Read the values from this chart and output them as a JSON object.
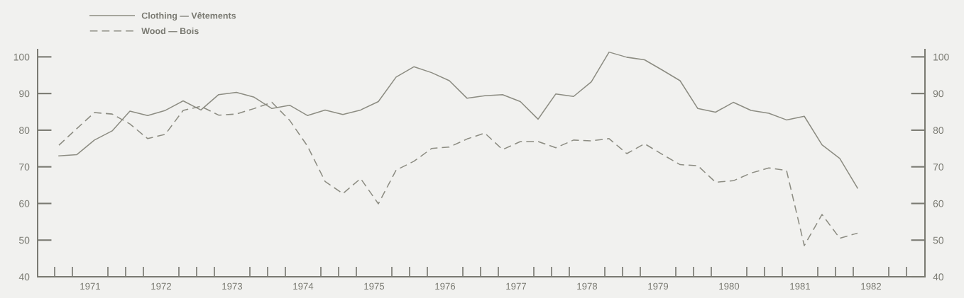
{
  "chart_data": {
    "type": "line",
    "x": [
      1971.06,
      1971.31,
      1971.56,
      1971.81,
      1972.06,
      1972.31,
      1972.56,
      1972.81,
      1973.06,
      1973.31,
      1973.56,
      1973.81,
      1974.06,
      1974.31,
      1974.56,
      1974.81,
      1975.06,
      1975.31,
      1975.56,
      1975.81,
      1976.06,
      1976.31,
      1976.56,
      1976.81,
      1977.06,
      1977.31,
      1977.56,
      1977.81,
      1978.06,
      1978.31,
      1978.56,
      1978.81,
      1979.06,
      1979.31,
      1979.56,
      1979.81,
      1980.06,
      1980.31,
      1980.56,
      1980.81,
      1981.06,
      1981.31,
      1981.56,
      1981.81,
      1982.06,
      1982.31
    ],
    "series": [
      {
        "name": "Clothing — Vêtements",
        "color": "#8c8c82",
        "line_style": "solid",
        "values": [
          73.0,
          73.3,
          77.3,
          79.8,
          85.2,
          84.0,
          85.4,
          88.0,
          85.5,
          89.7,
          90.3,
          89.0,
          85.9,
          86.8,
          84.0,
          85.5,
          84.3,
          85.5,
          87.8,
          94.5,
          97.3,
          95.7,
          93.5,
          88.7,
          89.4,
          89.7,
          87.8,
          83.0,
          89.9,
          89.2,
          93.2,
          101.3,
          99.9,
          99.2,
          96.4,
          93.5,
          85.9,
          84.9,
          87.6,
          85.4,
          84.6,
          82.8,
          83.8,
          76.0,
          72.3,
          64.2
        ]
      },
      {
        "name": "Wood — Bois",
        "color": "#8c8c82",
        "line_style": "dashed",
        "values": [
          75.9,
          80.4,
          84.8,
          84.4,
          81.7,
          77.7,
          78.9,
          85.4,
          86.5,
          84.1,
          84.4,
          85.9,
          87.6,
          82.7,
          75.7,
          66.0,
          62.7,
          66.8,
          59.9,
          69.1,
          71.5,
          75.0,
          75.4,
          77.6,
          79.2,
          74.7,
          76.9,
          76.9,
          75.2,
          77.3,
          77.1,
          77.7,
          73.6,
          76.3,
          73.4,
          70.6,
          70.3,
          65.8,
          66.2,
          68.3,
          69.7,
          69.0,
          48.5,
          57.0,
          50.5,
          51.9
        ]
      }
    ],
    "xlim": [
      1970.76,
      1983.26
    ],
    "xticks": [
      {
        "value": 1971,
        "label": null
      },
      {
        "value": 1971.25,
        "label": null
      },
      {
        "value": 1971.5,
        "label": "1971"
      },
      {
        "value": 1971.75,
        "label": null
      },
      {
        "value": 1972,
        "label": null
      },
      {
        "value": 1972.25,
        "label": null
      },
      {
        "value": 1972.5,
        "label": "1972"
      },
      {
        "value": 1972.75,
        "label": null
      },
      {
        "value": 1973,
        "label": null
      },
      {
        "value": 1973.25,
        "label": null
      },
      {
        "value": 1973.5,
        "label": "1973"
      },
      {
        "value": 1973.75,
        "label": null
      },
      {
        "value": 1974,
        "label": null
      },
      {
        "value": 1974.25,
        "label": null
      },
      {
        "value": 1974.5,
        "label": "1974"
      },
      {
        "value": 1974.75,
        "label": null
      },
      {
        "value": 1975,
        "label": null
      },
      {
        "value": 1975.25,
        "label": null
      },
      {
        "value": 1975.5,
        "label": "1975"
      },
      {
        "value": 1975.75,
        "label": null
      },
      {
        "value": 1976,
        "label": null
      },
      {
        "value": 1976.25,
        "label": null
      },
      {
        "value": 1976.5,
        "label": "1976"
      },
      {
        "value": 1976.75,
        "label": null
      },
      {
        "value": 1977,
        "label": null
      },
      {
        "value": 1977.25,
        "label": null
      },
      {
        "value": 1977.5,
        "label": "1977"
      },
      {
        "value": 1977.75,
        "label": null
      },
      {
        "value": 1978,
        "label": null
      },
      {
        "value": 1978.25,
        "label": null
      },
      {
        "value": 1978.5,
        "label": "1978"
      },
      {
        "value": 1978.75,
        "label": null
      },
      {
        "value": 1979,
        "label": null
      },
      {
        "value": 1979.25,
        "label": null
      },
      {
        "value": 1979.5,
        "label": "1979"
      },
      {
        "value": 1979.75,
        "label": null
      },
      {
        "value": 1980,
        "label": null
      },
      {
        "value": 1980.25,
        "label": null
      },
      {
        "value": 1980.5,
        "label": "1980"
      },
      {
        "value": 1980.75,
        "label": null
      },
      {
        "value": 1981,
        "label": null
      },
      {
        "value": 1981.25,
        "label": null
      },
      {
        "value": 1981.5,
        "label": "1981"
      },
      {
        "value": 1981.75,
        "label": null
      },
      {
        "value": 1982,
        "label": null
      },
      {
        "value": 1982.25,
        "label": null
      },
      {
        "value": 1982.5,
        "label": "1982"
      },
      {
        "value": 1982.75,
        "label": null
      },
      {
        "value": 1983,
        "label": null
      }
    ],
    "ylim": [
      40,
      102
    ],
    "yticks": [
      40,
      50,
      60,
      70,
      80,
      90,
      100
    ],
    "y2lim": [
      40,
      102
    ],
    "y2ticks": [
      40,
      50,
      60,
      70,
      80,
      90,
      100
    ],
    "grid": false,
    "legend": "top left",
    "marker": "none"
  }
}
